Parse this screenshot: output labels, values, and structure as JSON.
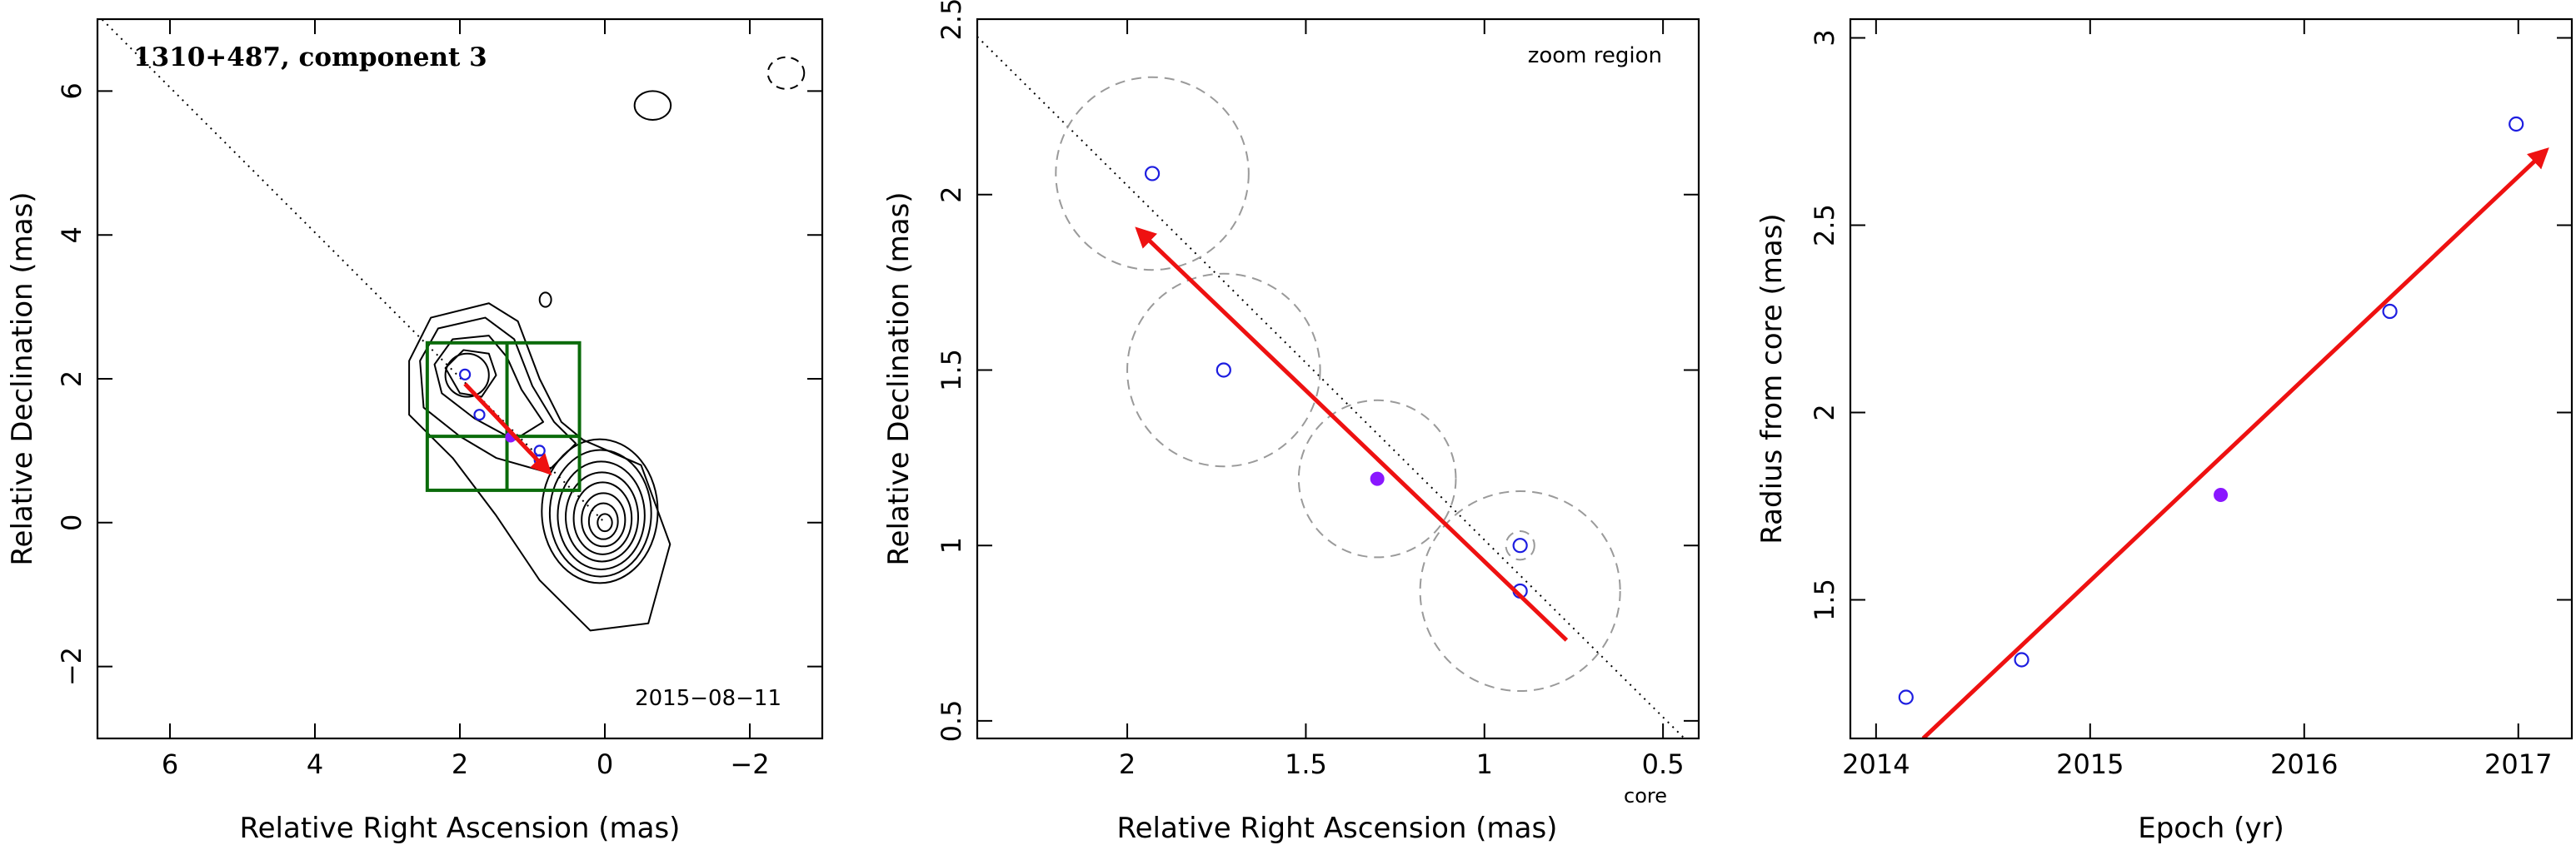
{
  "colors": {
    "motion": "#ee1111",
    "open_point": "#1d1de0",
    "filled_point": "#8a17ff",
    "zoom_box": "#0a6b0a",
    "uncertainty": "#9a9a9a"
  },
  "chart_data": [
    {
      "type": "scatter",
      "panel": "contour map",
      "title": "1310+487, component 3",
      "date_label": "2015−08−11",
      "xlabel": "Relative Right Ascension (mas)",
      "ylabel": "Relative Declination (mas)",
      "xlim": [
        7,
        -3
      ],
      "ylim": [
        -3,
        7
      ],
      "xticks": [
        6,
        4,
        2,
        0,
        -2
      ],
      "yticks": [
        -2,
        0,
        2,
        4,
        6
      ],
      "points": [
        {
          "x": 1.93,
          "y": 2.06,
          "filled": false
        },
        {
          "x": 1.73,
          "y": 1.5,
          "filled": false
        },
        {
          "x": 1.3,
          "y": 1.19,
          "filled": true
        },
        {
          "x": 0.9,
          "y": 1.0,
          "filled": false
        },
        {
          "x": 0.9,
          "y": 0.87,
          "filled": false
        }
      ],
      "motion_vector": {
        "from": [
          1.93,
          1.93
        ],
        "to": [
          0.77,
          0.7
        ]
      },
      "reference_line": {
        "from": [
          7,
          7.06
        ],
        "to": [
          0,
          0
        ]
      },
      "zoom_box": {
        "x": [
          0.35,
          2.45
        ],
        "y": [
          0.45,
          2.5
        ]
      },
      "zoom_box_divisions": {
        "x": 1.35,
        "y": 1.2
      },
      "contours": [
        {
          "x": 0,
          "y": 0,
          "rx": 0.1,
          "ry": 0.12
        },
        {
          "x": 0.02,
          "y": 0.02,
          "rx": 0.2,
          "ry": 0.25
        },
        {
          "x": 0.02,
          "y": 0.04,
          "rx": 0.3,
          "ry": 0.37
        },
        {
          "x": 0.03,
          "y": 0.06,
          "rx": 0.4,
          "ry": 0.5
        },
        {
          "x": 0.04,
          "y": 0.08,
          "rx": 0.5,
          "ry": 0.62
        },
        {
          "x": 0.05,
          "y": 0.1,
          "rx": 0.6,
          "ry": 0.75
        },
        {
          "x": 0.06,
          "y": 0.13,
          "rx": 0.7,
          "ry": 0.88
        },
        {
          "x": 0.07,
          "y": 0.16,
          "rx": 0.8,
          "ry": 1.0
        },
        {
          "x": 1.9,
          "y": 2.05,
          "rx": 0.3,
          "ry": 0.3
        },
        {
          "x": -0.66,
          "y": 5.8,
          "rx": 0.25,
          "ry": 0.2
        },
        {
          "x": 0.82,
          "y": 3.1,
          "rx": 0.08,
          "ry": 0.1
        }
      ],
      "outer_contours": [
        {
          "closed": true,
          "points": [
            [
              2.7,
              2.25
            ],
            [
              2.4,
              2.85
            ],
            [
              1.6,
              3.05
            ],
            [
              1.2,
              2.8
            ],
            [
              0.9,
              2.0
            ],
            [
              0.6,
              1.4
            ],
            [
              0.3,
              1.15
            ],
            [
              -0.5,
              0.8
            ],
            [
              -0.9,
              -0.3
            ],
            [
              -0.6,
              -1.4
            ],
            [
              0.2,
              -1.5
            ],
            [
              0.9,
              -0.8
            ],
            [
              1.5,
              0.1
            ],
            [
              2.1,
              0.9
            ],
            [
              2.7,
              1.5
            ]
          ]
        },
        {
          "closed": true,
          "points": [
            [
              2.55,
              2.25
            ],
            [
              2.3,
              2.7
            ],
            [
              1.65,
              2.85
            ],
            [
              1.25,
              2.55
            ],
            [
              1.0,
              1.9
            ],
            [
              0.7,
              1.4
            ],
            [
              0.4,
              1.1
            ],
            [
              0.8,
              0.7
            ],
            [
              1.5,
              0.9
            ],
            [
              2.0,
              1.2
            ],
            [
              2.5,
              1.6
            ]
          ]
        },
        {
          "closed": true,
          "points": [
            [
              2.35,
              2.2
            ],
            [
              2.1,
              2.55
            ],
            [
              1.6,
              2.6
            ],
            [
              1.35,
              2.3
            ],
            [
              1.15,
              1.85
            ],
            [
              0.85,
              1.4
            ],
            [
              1.25,
              1.15
            ],
            [
              1.8,
              1.45
            ],
            [
              2.25,
              1.8
            ]
          ]
        },
        {
          "closed": true,
          "points": [
            [
              2.2,
              2.15
            ],
            [
              1.95,
              2.4
            ],
            [
              1.6,
              2.35
            ],
            [
              1.5,
              2.05
            ],
            [
              1.7,
              1.75
            ],
            [
              2.0,
              1.8
            ]
          ]
        }
      ],
      "beam": {
        "x": -2.5,
        "y": 6.25,
        "rx": 0.25,
        "ry": 0.22
      }
    },
    {
      "type": "scatter",
      "panel": "zoom region",
      "annotation": "zoom region",
      "core_label": "core",
      "xlabel": "Relative Right Ascension (mas)",
      "ylabel": "Relative Declination (mas)",
      "xlim": [
        2.42,
        0.4
      ],
      "ylim": [
        0.45,
        2.5
      ],
      "xticks": [
        2,
        1.5,
        1,
        0.5
      ],
      "yticks": [
        0.5,
        1,
        1.5,
        2,
        2.5
      ],
      "points": [
        {
          "x": 1.93,
          "y": 2.06,
          "r_err": 0.27,
          "filled": false
        },
        {
          "x": 1.73,
          "y": 1.5,
          "r_err": 0.27,
          "filled": false
        },
        {
          "x": 1.3,
          "y": 1.19,
          "r_err": 0.22,
          "filled": true
        },
        {
          "x": 0.9,
          "y": 1.0,
          "r_err": 0.04,
          "filled": false
        },
        {
          "x": 0.9,
          "y": 0.87,
          "r_err": 0.28,
          "filled": false
        }
      ],
      "motion_vector": {
        "from": [
          0.77,
          0.73
        ],
        "to": [
          1.97,
          1.9
        ]
      },
      "reference_line": {
        "from": [
          2.42,
          2.45
        ],
        "to": [
          0.44,
          0.45
        ]
      }
    },
    {
      "type": "scatter",
      "panel": "radius vs epoch",
      "xlabel": "Epoch (yr)",
      "ylabel": "Radius from core (mas)",
      "xlim": [
        2013.88,
        2017.25
      ],
      "ylim": [
        1.13,
        3.05
      ],
      "xticks": [
        2014,
        2015,
        2016,
        2017
      ],
      "yticks": [
        1.5,
        2,
        2.5,
        3
      ],
      "points": [
        {
          "x": 2014.14,
          "y": 1.24,
          "filled": false
        },
        {
          "x": 2014.68,
          "y": 1.34,
          "filled": false
        },
        {
          "x": 2015.61,
          "y": 1.78,
          "filled": true
        },
        {
          "x": 2016.4,
          "y": 2.27,
          "filled": false
        },
        {
          "x": 2016.99,
          "y": 2.77,
          "filled": false
        }
      ],
      "fit_line": {
        "from": [
          2014.22,
          1.13
        ],
        "to": [
          2017.13,
          2.7
        ]
      }
    }
  ]
}
